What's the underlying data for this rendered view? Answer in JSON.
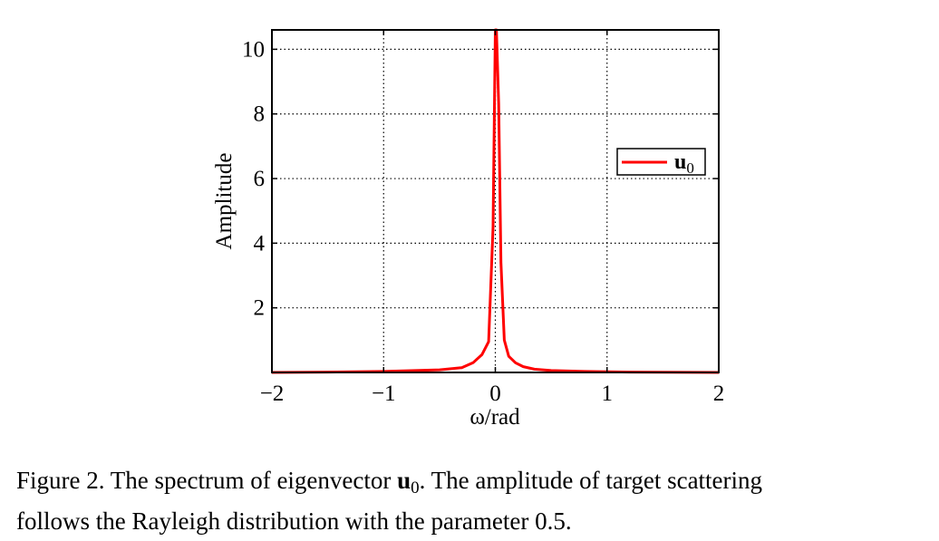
{
  "chart_data": {
    "type": "line",
    "title": "",
    "xlabel": "ω/rad",
    "ylabel": "Amplitude",
    "xlim": [
      -2,
      2
    ],
    "ylim": [
      0,
      10.6
    ],
    "xticks": [
      -2,
      -1,
      0,
      1,
      2
    ],
    "xtick_labels": [
      "−2",
      "−1",
      "0",
      "1",
      "2"
    ],
    "yticks": [
      2,
      4,
      6,
      8,
      10
    ],
    "ytick_labels": [
      "2",
      "4",
      "6",
      "8",
      "10"
    ],
    "grid": true,
    "legend_position": "right",
    "series": [
      {
        "name": "u0",
        "legend_symbol": "u",
        "legend_subscript": "0",
        "color": "#ff0000",
        "x": [
          -2.0,
          -1.5,
          -1.0,
          -0.5,
          -0.3,
          -0.2,
          -0.12,
          -0.06,
          -0.02,
          0.0,
          0.01,
          0.03,
          0.05,
          0.08,
          0.12,
          0.18,
          0.25,
          0.35,
          0.5,
          0.8,
          1.2,
          2.0
        ],
        "y": [
          0.0,
          0.01,
          0.03,
          0.08,
          0.15,
          0.3,
          0.55,
          0.95,
          4.5,
          10.6,
          10.6,
          8.3,
          3.4,
          1.0,
          0.5,
          0.3,
          0.18,
          0.1,
          0.06,
          0.03,
          0.01,
          0.0
        ]
      }
    ]
  },
  "caption": {
    "prefix": "Figure 2.  The spectrum of eigenvector ",
    "symbol": "u",
    "subscript": "0",
    "line1_rest": ". The amplitude of target scattering",
    "line2": "follows the Rayleigh distribution with the parameter 0.5."
  }
}
